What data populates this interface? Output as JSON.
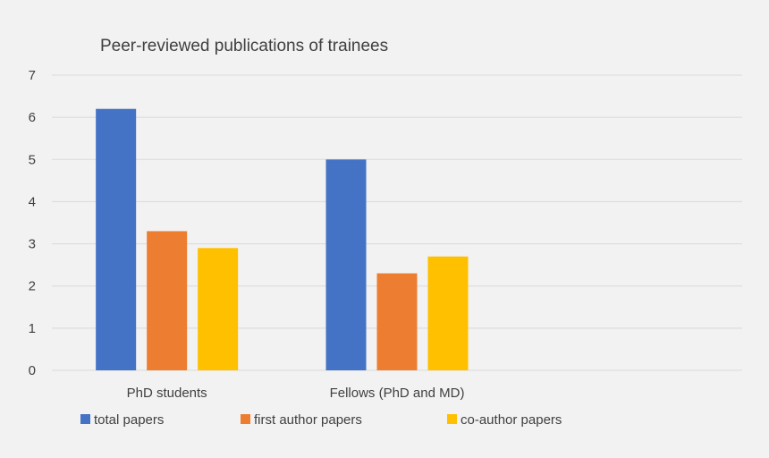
{
  "chart_data": {
    "type": "bar",
    "title": "Peer-reviewed publications of trainees",
    "xlabel": "",
    "ylabel": "",
    "ylim": [
      0,
      7
    ],
    "yticks": [
      0,
      1,
      2,
      3,
      4,
      5,
      6,
      7
    ],
    "grid": true,
    "legend_position": "bottom-left",
    "categories": [
      "PhD students",
      "Fellows (PhD and MD)",
      ""
    ],
    "series": [
      {
        "name": "total papers",
        "color": "#4472c4",
        "values": [
          6.2,
          5.0,
          null
        ]
      },
      {
        "name": "first author papers",
        "color": "#ed7d31",
        "values": [
          3.3,
          2.3,
          null
        ]
      },
      {
        "name": "co-author papers",
        "color": "#ffc000",
        "values": [
          2.9,
          2.7,
          null
        ]
      }
    ]
  }
}
